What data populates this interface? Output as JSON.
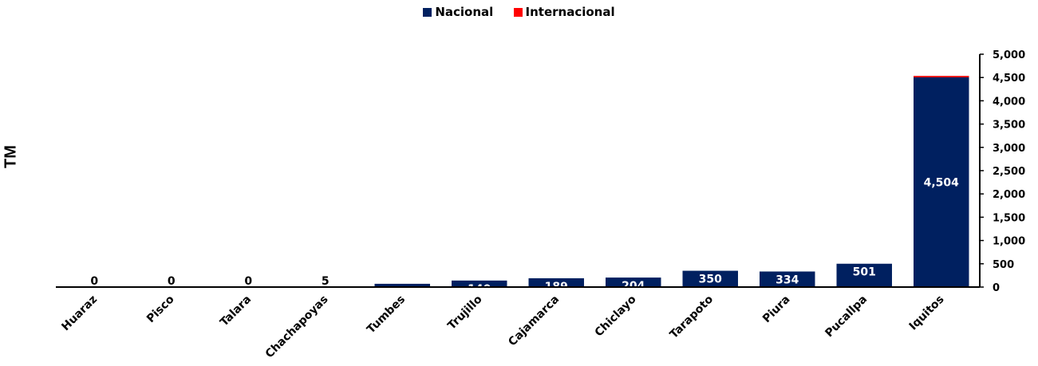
{
  "chart_data": {
    "type": "bar",
    "stacked": true,
    "categories": [
      "Huaraz",
      "Pisco",
      "Talara",
      "Chachapoyas",
      "Tumbes",
      "Trujillo",
      "Cajamarca",
      "Chiclayo",
      "Tarapoto",
      "Piura",
      "Pucallpa",
      "Iquitos"
    ],
    "series": [
      {
        "name": "Nacional",
        "color": "#002060",
        "values": [
          0,
          0,
          0,
          5,
          70,
          140,
          189,
          204,
          350,
          334,
          501,
          4504
        ]
      },
      {
        "name": "Internacional",
        "color": "#ff0000",
        "values": [
          0,
          0,
          0,
          0,
          0,
          0,
          0,
          0,
          0,
          0,
          0,
          30
        ]
      }
    ],
    "data_labels": [
      "0",
      "0",
      "0",
      "5",
      "70",
      "140",
      "189",
      "204",
      "350",
      "334",
      "501",
      "4,504"
    ],
    "ylabel": "TM",
    "xlabel": "",
    "ylim": [
      0,
      5000
    ],
    "yticks": [
      0,
      500,
      1000,
      1500,
      2000,
      2500,
      3000,
      3500,
      4000,
      4500,
      5000
    ],
    "ytick_labels": [
      "0",
      "500",
      "1,000",
      "1,500",
      "2,000",
      "2,500",
      "3,000",
      "3,500",
      "4,000",
      "4,500",
      "5,000"
    ],
    "y_axis_side": "right",
    "grid": false,
    "legend_position": "top"
  }
}
